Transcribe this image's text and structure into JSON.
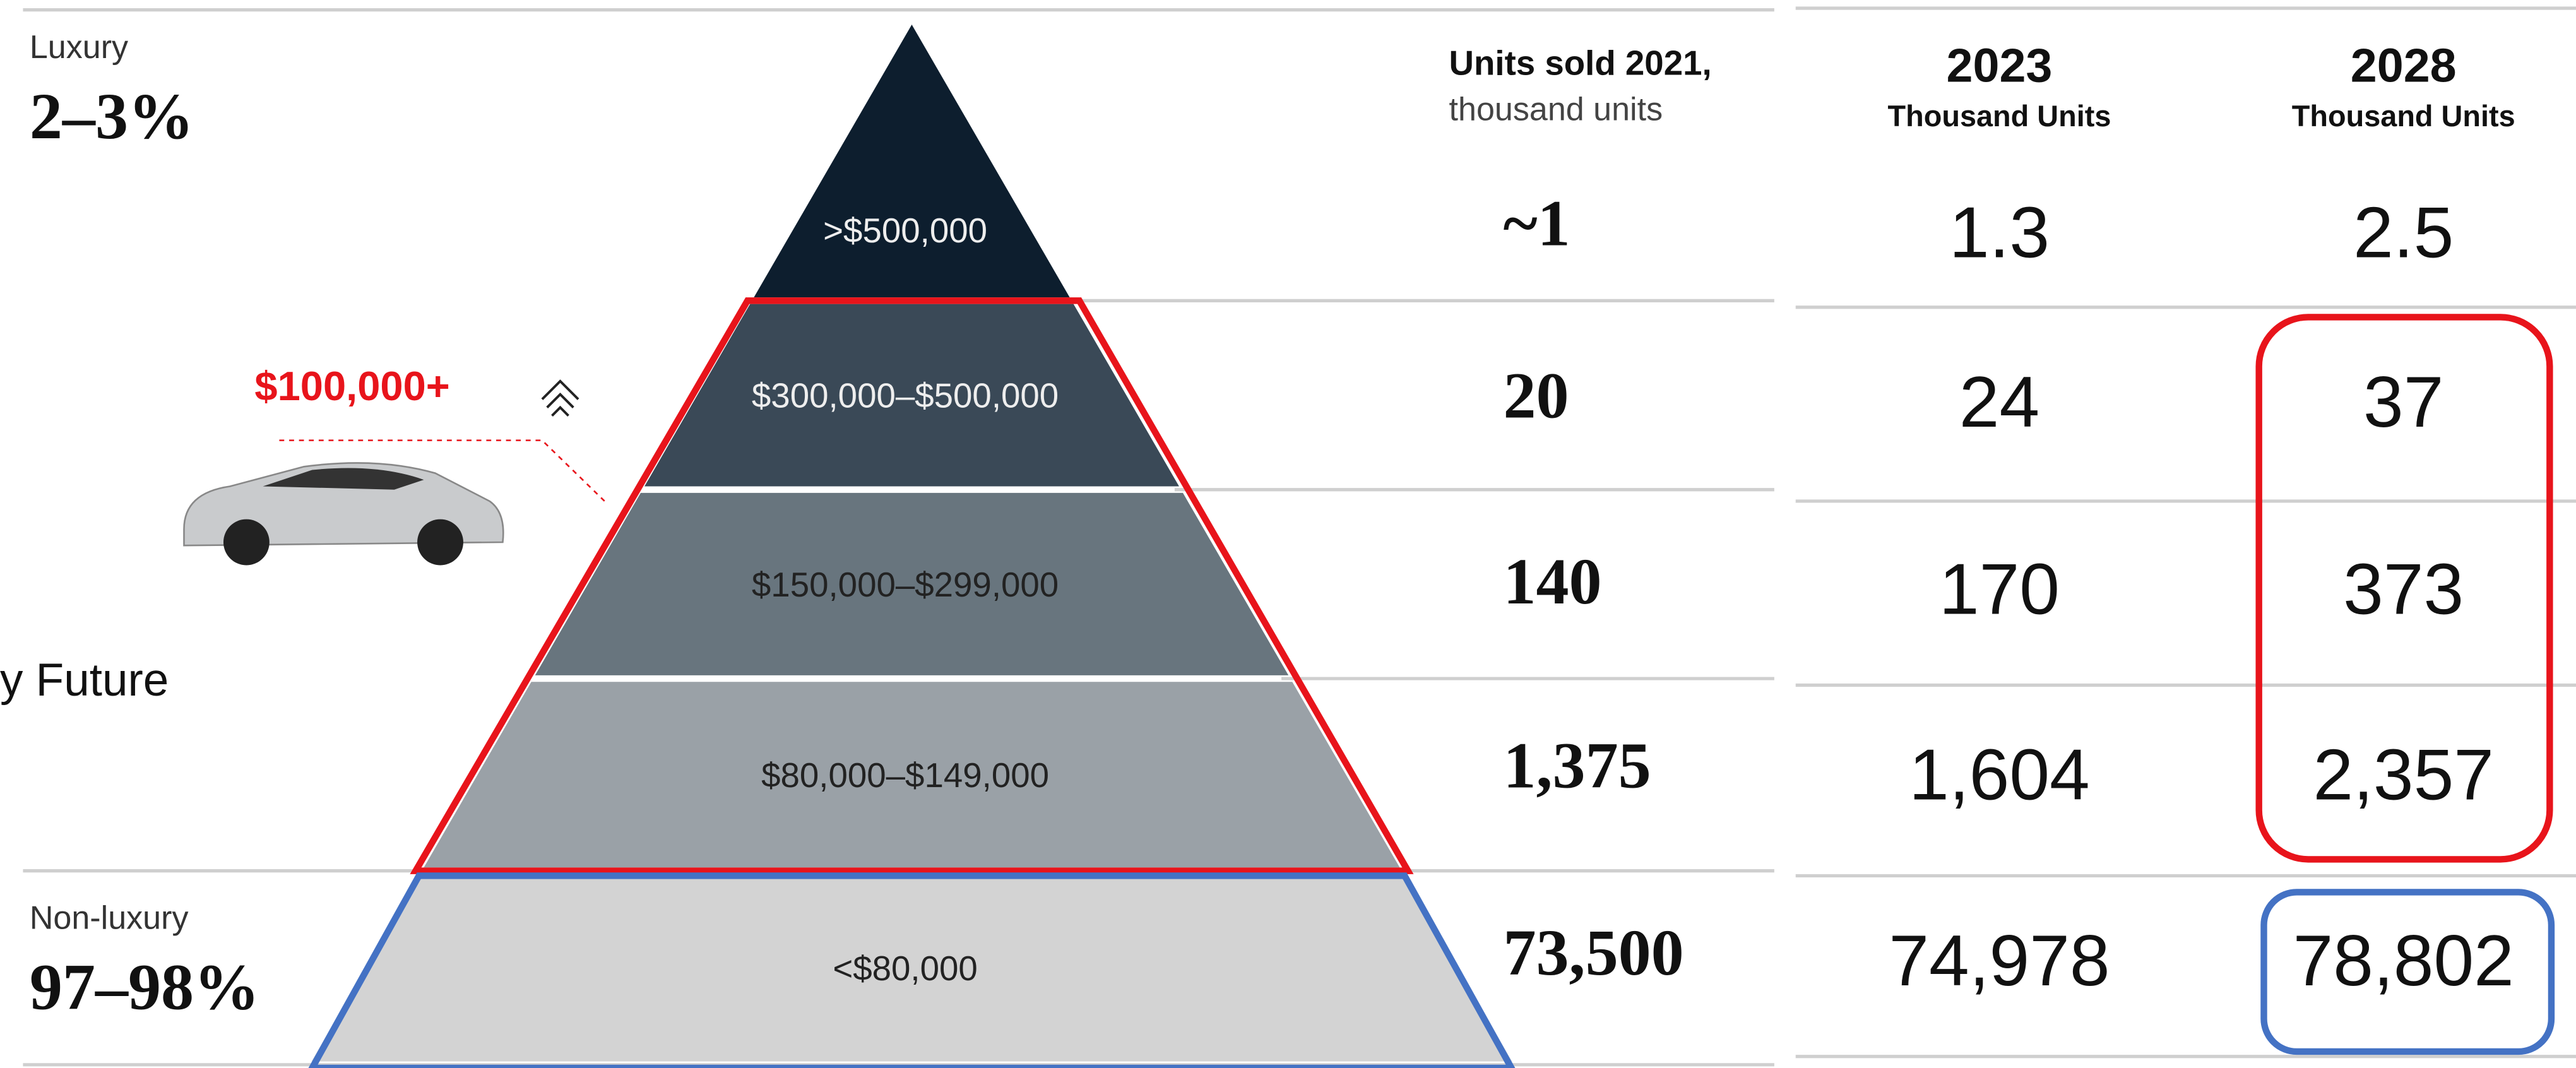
{
  "segments": {
    "luxury": {
      "label": "Luxury",
      "share": "2–3%"
    },
    "non_luxury": {
      "label": "Non-luxury",
      "share": "97–98%"
    }
  },
  "callout": {
    "price": "$100,000+",
    "company": "y Future"
  },
  "pyramid": {
    "tiers": [
      ">$500,000",
      "$300,000–$500,000",
      "$150,000–$299,000",
      "$80,000–$149,000",
      "<$80,000"
    ]
  },
  "units_2021": {
    "header": "Units sold 2021,",
    "subheader": "thousand units",
    "values": [
      "~1",
      "20",
      "140",
      "1,375",
      "73,500"
    ]
  },
  "forecast": {
    "columns": [
      {
        "year": "2023",
        "unit": "Thousand Units",
        "values": [
          "1.3",
          "24",
          "170",
          "1,604",
          "74,978"
        ]
      },
      {
        "year": "2028",
        "unit": "Thousand Units",
        "values": [
          "2.5",
          "37",
          "373",
          "2,357",
          "78,802"
        ]
      }
    ]
  }
}
